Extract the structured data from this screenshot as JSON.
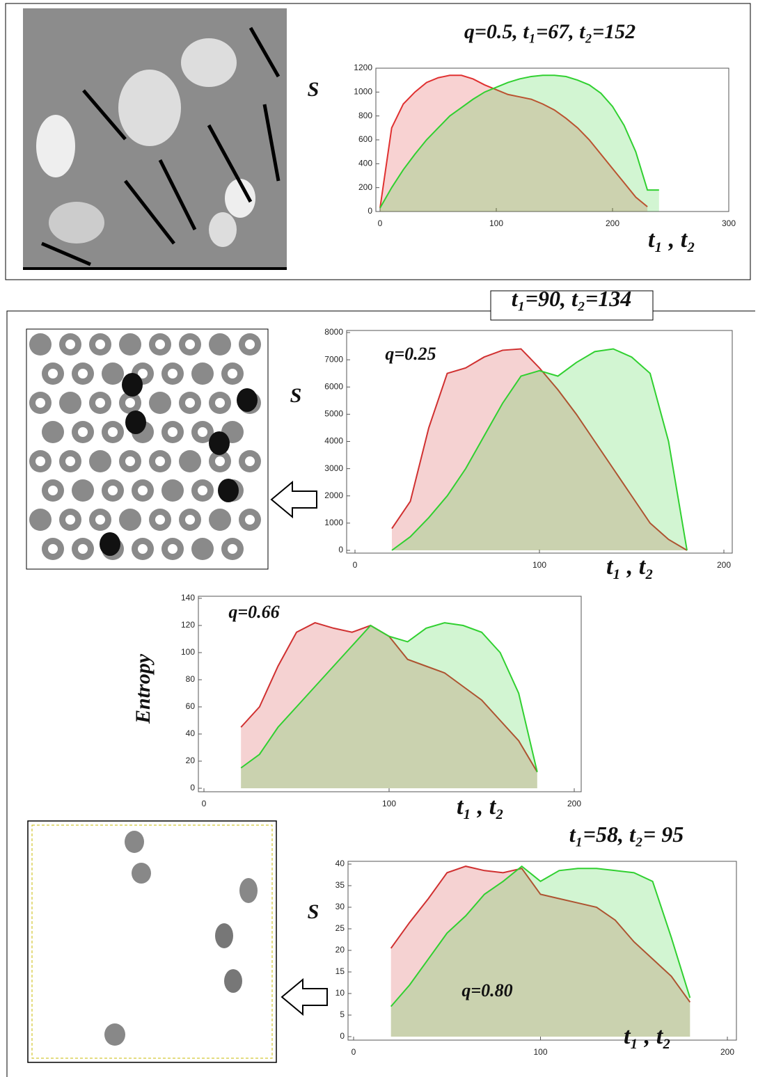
{
  "chart_data": [
    {
      "type": "line",
      "title": "q=0.5,  t₁=67,  t₂=152",
      "ylabel": "S",
      "xlabel": "t₁ ,  t₂",
      "x": [
        0,
        10,
        20,
        30,
        40,
        50,
        60,
        70,
        80,
        90,
        100,
        110,
        120,
        130,
        140,
        150,
        160,
        170,
        180,
        190,
        200,
        210,
        220,
        230,
        240
      ],
      "series": [
        {
          "color": "#e03030",
          "values": [
            30,
            700,
            900,
            1000,
            1080,
            1120,
            1140,
            1140,
            1110,
            1060,
            1020,
            980,
            960,
            940,
            900,
            850,
            780,
            700,
            600,
            480,
            360,
            240,
            120,
            40,
            null
          ]
        },
        {
          "color": "#30d030",
          "values": [
            30,
            200,
            350,
            480,
            600,
            700,
            800,
            870,
            940,
            1000,
            1040,
            1080,
            1110,
            1130,
            1140,
            1140,
            1130,
            1100,
            1060,
            990,
            880,
            720,
            500,
            180,
            180
          ]
        }
      ],
      "xlim": [
        0,
        300
      ],
      "xticks": [
        0,
        100,
        200,
        300
      ],
      "ylim": [
        0,
        1200
      ],
      "yticks": [
        0,
        200,
        400,
        600,
        800,
        1000,
        1200
      ]
    },
    {
      "type": "line",
      "title": "t₁=90, t₂=134",
      "annotation": "q=0.25",
      "ylabel": "S",
      "xlabel": "t₁ ,  t₂",
      "x": [
        20,
        30,
        40,
        50,
        60,
        70,
        80,
        90,
        100,
        110,
        120,
        130,
        140,
        150,
        160,
        170,
        180
      ],
      "series": [
        {
          "color": "#d03030",
          "values": [
            800,
            1800,
            4500,
            6500,
            6700,
            7100,
            7350,
            7400,
            6700,
            5900,
            5000,
            4000,
            3000,
            2000,
            1000,
            400,
            0
          ]
        },
        {
          "color": "#30d030",
          "values": [
            0,
            500,
            1200,
            2000,
            3000,
            4200,
            5400,
            6400,
            6600,
            6400,
            6900,
            7300,
            7400,
            7100,
            6500,
            4000,
            0
          ]
        }
      ],
      "xlim": [
        0,
        200
      ],
      "xticks": [
        0,
        100,
        200
      ],
      "ylim": [
        0,
        8000
      ],
      "yticks": [
        0,
        1000,
        2000,
        3000,
        4000,
        5000,
        6000,
        7000,
        8000
      ]
    },
    {
      "type": "line",
      "annotation": "q=0.66",
      "ylabel": "Entropy",
      "xlabel": "t₁ ,  t₂",
      "x": [
        20,
        30,
        40,
        50,
        60,
        70,
        80,
        90,
        100,
        110,
        120,
        130,
        140,
        150,
        160,
        170,
        180
      ],
      "series": [
        {
          "color": "#d03030",
          "values": [
            45,
            60,
            90,
            115,
            122,
            118,
            115,
            120,
            112,
            95,
            90,
            85,
            75,
            65,
            50,
            35,
            12
          ]
        },
        {
          "color": "#30d030",
          "values": [
            15,
            25,
            45,
            60,
            75,
            90,
            105,
            120,
            112,
            108,
            118,
            122,
            120,
            115,
            100,
            70,
            12
          ]
        }
      ],
      "xlim": [
        0,
        200
      ],
      "xticks": [
        0,
        100,
        200
      ],
      "ylim": [
        0,
        140
      ],
      "yticks": [
        0,
        20,
        40,
        60,
        80,
        100,
        120,
        140
      ]
    },
    {
      "type": "line",
      "title": "t₁=58, t₂= 95",
      "annotation": "q=0.80",
      "ylabel": "S",
      "xlabel": "t₁ ,  t₂",
      "x": [
        20,
        30,
        40,
        50,
        60,
        70,
        80,
        90,
        100,
        110,
        120,
        130,
        140,
        150,
        160,
        170,
        180
      ],
      "series": [
        {
          "color": "#d03030",
          "values": [
            20.5,
            26.5,
            32,
            38,
            39.5,
            38.5,
            38,
            39,
            33,
            32,
            31,
            30,
            27,
            22,
            18,
            14,
            8
          ]
        },
        {
          "color": "#30d030",
          "values": [
            7,
            12,
            18,
            24,
            28,
            33,
            36,
            39.5,
            36,
            38.5,
            39,
            39,
            38.5,
            38,
            36,
            23,
            9
          ]
        }
      ],
      "xlim": [
        0,
        200
      ],
      "xticks": [
        0,
        100,
        200
      ],
      "ylim": [
        0,
        40
      ],
      "yticks": [
        0,
        5,
        10,
        15,
        20,
        25,
        30,
        35,
        40
      ]
    }
  ]
}
